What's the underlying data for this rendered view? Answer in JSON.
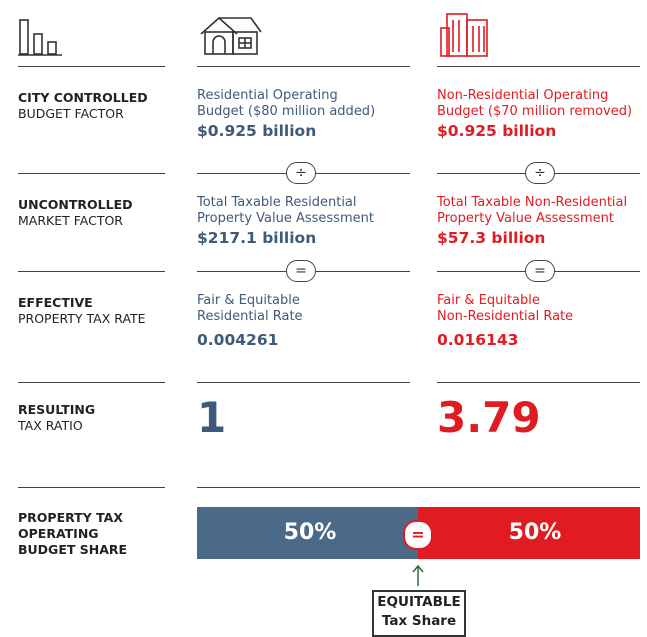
{
  "rows": [
    {
      "label_bold": "CITY CONTROLLED",
      "label": "BUDGET FACTOR",
      "residential": {
        "lines": [
          "Residential Operating",
          "Budget ($80 million added)"
        ],
        "value": "$0.925 billion"
      },
      "non_residential": {
        "lines": [
          "Non-Residential Operating",
          "Budget ($70 million removed)"
        ],
        "value": "$0.925 billion"
      }
    },
    {
      "label_bold": "UNCONTROLLED",
      "label": "MARKET FACTOR",
      "residential": {
        "lines": [
          "Total Taxable Residential",
          "Property Value Assessment"
        ],
        "value": "$217.1 billion"
      },
      "non_residential": {
        "lines": [
          "Total Taxable Non-Residential",
          "Property Value Assessment"
        ],
        "value": "$57.3 billion"
      }
    },
    {
      "label_bold": "EFFECTIVE",
      "label": "PROPERTY TAX RATE",
      "residential": {
        "lines": [
          "Fair & Equitable",
          "Residential Rate"
        ],
        "value": "0.004261"
      },
      "non_residential": {
        "lines": [
          "Fair & Equitable",
          "Non-Residential Rate"
        ],
        "value": "0.016143"
      }
    }
  ],
  "operators": [
    "÷",
    "="
  ],
  "ratio": {
    "label_bold": "RESULTING",
    "label": "TAX RATIO",
    "residential": "1",
    "non_residential": "3.79"
  },
  "share": {
    "label_lines": [
      "PROPERTY TAX",
      "OPERATING",
      "BUDGET SHARE"
    ],
    "residential": "50%",
    "non_residential": "50%",
    "operator": "=",
    "box_lines": [
      "EQUITABLE",
      "Tax Share"
    ]
  }
}
